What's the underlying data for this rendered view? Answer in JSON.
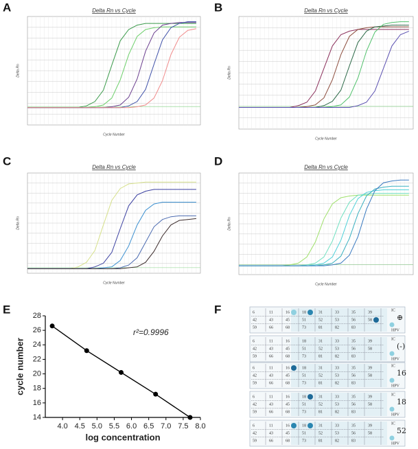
{
  "panel_labels": [
    "A",
    "B",
    "C",
    "D",
    "E",
    "F"
  ],
  "chart_data": [
    {
      "type": "line",
      "title": "Delta Rn vs Cycle",
      "xlabel": "Cycle Number",
      "ylabel": "Delta Rn",
      "x": [
        0,
        2,
        4,
        6,
        8,
        10,
        12,
        14,
        16,
        18,
        20,
        22,
        24,
        26,
        28,
        30,
        32,
        34,
        36,
        38,
        40
      ],
      "xlim": [
        0,
        41
      ],
      "ylim": [
        -0.2,
        1.05
      ],
      "grid": true,
      "series": [
        {
          "color": "#3a9a4a",
          "values": [
            0,
            0,
            0,
            0,
            0,
            0,
            0,
            0.02,
            0.07,
            0.2,
            0.49,
            0.77,
            0.9,
            0.95,
            0.97,
            0.97,
            0.97,
            0.97,
            0.97,
            0.97,
            0.97
          ]
        },
        {
          "color": "#6ccf6a",
          "values": [
            0,
            0,
            0,
            0,
            0,
            0,
            0,
            0,
            0.01,
            0.03,
            0.11,
            0.32,
            0.61,
            0.82,
            0.9,
            0.92,
            0.93,
            0.93,
            0.93,
            0.93,
            0.93
          ]
        },
        {
          "color": "#6b3f8f",
          "values": [
            0,
            0,
            0,
            0,
            0,
            0,
            0,
            0,
            0,
            0,
            0.01,
            0.03,
            0.12,
            0.33,
            0.65,
            0.86,
            0.95,
            0.97,
            0.98,
            0.98,
            0.98
          ]
        },
        {
          "color": "#3d4fa8",
          "values": [
            0,
            0,
            0,
            0,
            0,
            0,
            0,
            0,
            0,
            0,
            0,
            0,
            0.02,
            0.07,
            0.21,
            0.5,
            0.78,
            0.92,
            0.97,
            0.99,
            0.99
          ]
        },
        {
          "color": "#f08a8a",
          "values": [
            0,
            0,
            0,
            0,
            0,
            0,
            0,
            0,
            0,
            0,
            0,
            0,
            0,
            0.01,
            0.03,
            0.11,
            0.31,
            0.61,
            0.81,
            0.89,
            0.91
          ]
        }
      ]
    },
    {
      "type": "line",
      "title": "Delta Rn vs Cycle",
      "xlabel": "Cycle Number",
      "ylabel": "Delta Rn",
      "x": [
        0,
        2,
        4,
        6,
        8,
        10,
        12,
        14,
        16,
        18,
        20,
        22,
        24,
        26,
        28,
        30,
        32,
        34,
        36,
        38,
        40
      ],
      "xlim": [
        0,
        41
      ],
      "ylim": [
        -0.25,
        1.05
      ],
      "grid": true,
      "series": [
        {
          "color": "#8a2e5a",
          "values": [
            0,
            0,
            0,
            0,
            0,
            0,
            0,
            0.02,
            0.06,
            0.19,
            0.45,
            0.71,
            0.84,
            0.88,
            0.9,
            0.9,
            0.9,
            0.9,
            0.9,
            0.9,
            0.9
          ]
        },
        {
          "color": "#8b4a3a",
          "values": [
            0,
            0,
            0,
            0,
            0,
            0,
            0,
            0,
            0.01,
            0.03,
            0.11,
            0.32,
            0.61,
            0.82,
            0.9,
            0.92,
            0.93,
            0.93,
            0.93,
            0.93,
            0.93
          ]
        },
        {
          "color": "#2e6b4a",
          "values": [
            0,
            0,
            0,
            0,
            0,
            0,
            0,
            0,
            0,
            0,
            0.02,
            0.07,
            0.2,
            0.48,
            0.75,
            0.88,
            0.93,
            0.94,
            0.95,
            0.95,
            0.95
          ]
        },
        {
          "color": "#4fc06a",
          "values": [
            0,
            0,
            0,
            0,
            0,
            0,
            0,
            0,
            0,
            0,
            0,
            0.01,
            0.03,
            0.12,
            0.34,
            0.65,
            0.87,
            0.96,
            0.98,
            0.99,
            0.99
          ]
        },
        {
          "color": "#5a4fb0",
          "values": [
            0,
            0,
            0,
            0,
            0,
            0,
            0,
            0,
            0,
            0,
            0,
            0,
            0,
            0,
            0.02,
            0.06,
            0.19,
            0.45,
            0.71,
            0.84,
            0.88
          ]
        }
      ]
    },
    {
      "type": "line",
      "title": "Delta Rn vs Cycle",
      "xlabel": "Cycle Number",
      "ylabel": "Delta Rn",
      "x": [
        0,
        2,
        4,
        6,
        8,
        10,
        12,
        14,
        16,
        18,
        20,
        22,
        24,
        26,
        28,
        30,
        32,
        34,
        36,
        38,
        40
      ],
      "xlim": [
        0,
        41
      ],
      "ylim": [
        -0.05,
        1.05
      ],
      "grid": true,
      "series": [
        {
          "color": "#d6e08a",
          "values": [
            0,
            0,
            0,
            0,
            0,
            0,
            0.02,
            0.07,
            0.2,
            0.48,
            0.75,
            0.88,
            0.93,
            0.94,
            0.95,
            0.95,
            0.95,
            0.95,
            0.95,
            0.95,
            0.95
          ]
        },
        {
          "color": "#3a3fa0",
          "values": [
            0,
            0,
            0,
            0,
            0,
            0,
            0,
            0,
            0.02,
            0.06,
            0.18,
            0.44,
            0.69,
            0.81,
            0.85,
            0.87,
            0.87,
            0.87,
            0.87,
            0.87,
            0.87
          ]
        },
        {
          "color": "#3a8fd0",
          "values": [
            0,
            0,
            0,
            0,
            0,
            0,
            0,
            0,
            0,
            0.01,
            0.02,
            0.09,
            0.25,
            0.48,
            0.64,
            0.71,
            0.73,
            0.73,
            0.73,
            0.73,
            0.73
          ]
        },
        {
          "color": "#4a6ab0",
          "values": [
            0,
            0,
            0,
            0,
            0,
            0,
            0,
            0,
            0,
            0,
            0,
            0.01,
            0.04,
            0.12,
            0.29,
            0.46,
            0.54,
            0.57,
            0.58,
            0.58,
            0.58
          ]
        },
        {
          "color": "#3a2a2a",
          "values": [
            0,
            0,
            0,
            0,
            0,
            0,
            0,
            0,
            0,
            0,
            0,
            0,
            0.01,
            0.02,
            0.07,
            0.19,
            0.36,
            0.48,
            0.53,
            0.54,
            0.55
          ]
        }
      ]
    },
    {
      "type": "line",
      "title": "Delta Rn vs Cycle",
      "xlabel": "Cycle Number",
      "ylabel": "Delta Rn",
      "x": [
        0,
        2,
        4,
        6,
        8,
        10,
        12,
        14,
        16,
        18,
        20,
        22,
        24,
        26,
        28,
        30,
        32,
        34,
        36,
        38,
        40
      ],
      "xlim": [
        0,
        41
      ],
      "ylim": [
        -0.1,
        1.05
      ],
      "grid": true,
      "series": [
        {
          "color": "#9ee06a",
          "values": [
            0,
            0,
            0,
            0,
            0,
            0,
            0.01,
            0.03,
            0.1,
            0.27,
            0.53,
            0.7,
            0.77,
            0.79,
            0.8,
            0.8,
            0.8,
            0.8,
            0.8,
            0.8,
            0.8
          ]
        },
        {
          "color": "#6fe0c0",
          "values": [
            0,
            0,
            0,
            0,
            0,
            0,
            0,
            0,
            0.01,
            0.03,
            0.1,
            0.28,
            0.54,
            0.72,
            0.8,
            0.81,
            0.82,
            0.82,
            0.82,
            0.82,
            0.82
          ]
        },
        {
          "color": "#4ed0d8",
          "values": [
            0,
            0,
            0,
            0,
            0,
            0,
            0,
            0,
            0,
            0.01,
            0.03,
            0.1,
            0.29,
            0.57,
            0.76,
            0.83,
            0.85,
            0.86,
            0.86,
            0.86,
            0.86
          ]
        },
        {
          "color": "#3ab0c0",
          "values": [
            0,
            0,
            0,
            0,
            0,
            0,
            0,
            0,
            0,
            0,
            0.01,
            0.03,
            0.11,
            0.31,
            0.59,
            0.79,
            0.87,
            0.89,
            0.9,
            0.9,
            0.9
          ]
        },
        {
          "color": "#3a7ac0",
          "values": [
            0,
            0,
            0,
            0,
            0,
            0,
            0,
            0,
            0,
            0,
            0,
            0.01,
            0.03,
            0.12,
            0.33,
            0.64,
            0.85,
            0.94,
            0.96,
            0.97,
            0.97
          ]
        }
      ]
    },
    {
      "type": "scatter-line",
      "xlabel": "log concentration",
      "ylabel": "cycle number",
      "annotation": "r²=0.9996",
      "x": [
        3.7,
        4.7,
        5.7,
        6.7,
        7.7
      ],
      "xlim": [
        3.5,
        8.0
      ],
      "xticks": [
        {
          "value": 4,
          "label": "4.0"
        },
        {
          "value": 4.5,
          "label": "4.5"
        },
        {
          "value": 5,
          "label": "5.0"
        },
        {
          "value": 5.5,
          "label": "5.5"
        },
        {
          "value": 6,
          "label": "6.0"
        },
        {
          "value": 6.5,
          "label": "6.5"
        },
        {
          "value": 7,
          "label": "7.0"
        },
        {
          "value": 7.5,
          "label": "7.5"
        },
        {
          "value": 8,
          "label": "8.0"
        }
      ],
      "ylim": [
        14,
        28
      ],
      "yticks": [
        14,
        16,
        18,
        20,
        22,
        24,
        26,
        28
      ],
      "series": [
        {
          "color": "#000000",
          "values": [
            26.6,
            23.2,
            20.2,
            17.2,
            14.0
          ]
        }
      ]
    }
  ],
  "strips": {
    "rows": [
      [
        6,
        11,
        16,
        18,
        31,
        33,
        35,
        39
      ],
      [
        42,
        43,
        45,
        51,
        52,
        53,
        56,
        58
      ],
      [
        59,
        66,
        68,
        73,
        81,
        82,
        83
      ]
    ],
    "ic": "IC",
    "hpv": "HPV",
    "labels": [
      "⊕",
      "(-)",
      "16",
      "18",
      "52"
    ]
  }
}
